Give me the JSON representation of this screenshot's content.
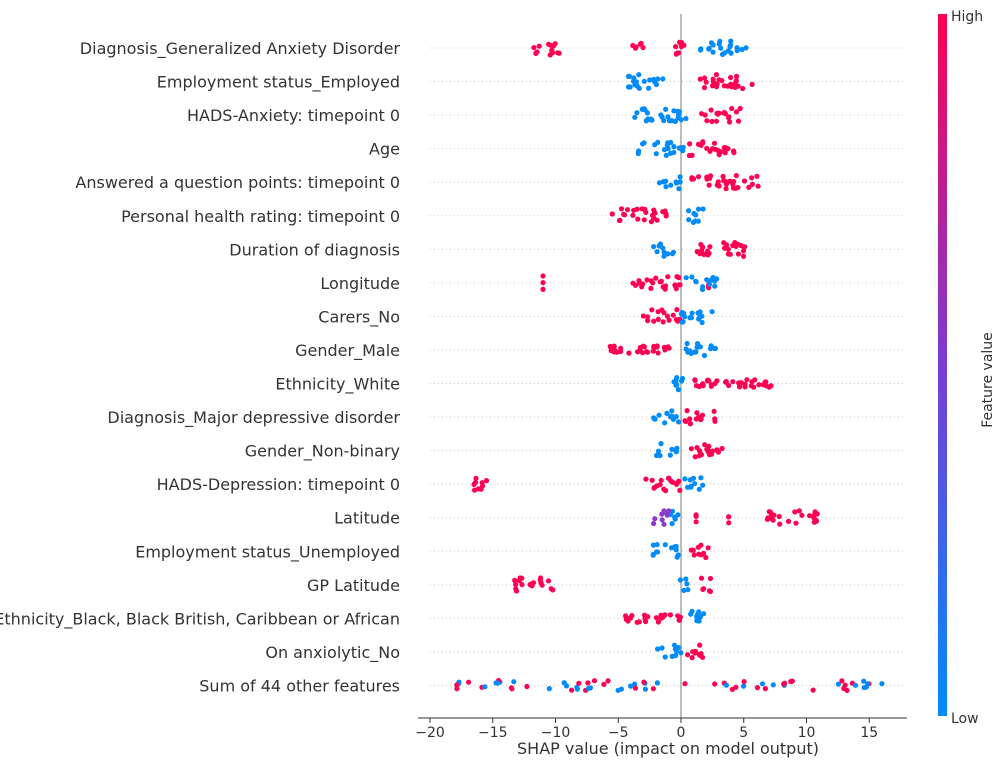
{
  "chart_data": {
    "type": "scatter",
    "subtype": "shap-beeswarm",
    "xlabel": "SHAP value (impact on model output)",
    "xlim": [
      -20,
      18
    ],
    "xticks": [
      -20,
      -15,
      -10,
      -5,
      0,
      5,
      10,
      15
    ],
    "colorbar": {
      "label": "Feature value",
      "high_label": "High",
      "low_label": "Low",
      "high_color": "#ff0052",
      "low_color": "#008bfb"
    },
    "features": [
      {
        "name": "Diagnosis_Generalized Anxiety Disorder",
        "high": [
          [
            -12,
            -9.5,
            -7,
            -5
          ],
          [
            -4,
            -3,
            -2,
            -1.5
          ],
          [
            -1,
            0.5
          ]
        ],
        "low": [
          [
            1.5,
            5.2
          ]
        ]
      },
      {
        "name": "Employment status_Employed",
        "high": [
          [
            1.5,
            5.8
          ]
        ],
        "low": [
          [
            -4.5,
            -1.2
          ]
        ]
      },
      {
        "name": "HADS-Anxiety: timepoint 0",
        "high": [
          [
            1.5,
            4.8
          ]
        ],
        "low": [
          [
            -3.8,
            0.8
          ]
        ]
      },
      {
        "name": "Age",
        "high": [
          [
            0.5,
            4.3
          ]
        ],
        "low": [
          [
            -3.5,
            0.2
          ]
        ]
      },
      {
        "name": "Answered a question points: timepoint 0",
        "high": [
          [
            0.8,
            1.5
          ],
          [
            2,
            6.5
          ]
        ],
        "low": [
          [
            -2,
            0
          ]
        ]
      },
      {
        "name": "Personal health rating: timepoint 0",
        "high": [
          [
            -5.5,
            -1
          ]
        ],
        "low": [
          [
            0.5,
            2
          ]
        ]
      },
      {
        "name": "Duration of diagnosis",
        "high": [
          [
            0.8,
            5.5
          ]
        ],
        "low": [
          [
            -2.2,
            -0.5
          ]
        ]
      },
      {
        "name": "Longitude",
        "high": [
          [
            -11,
            -11
          ],
          [
            -4.2,
            0
          ],
          [
            2.2,
            2.2
          ]
        ],
        "low": [
          [
            0.2,
            3
          ]
        ]
      },
      {
        "name": "Carers_No",
        "high": [
          [
            -3,
            0
          ]
        ],
        "low": [
          [
            0,
            2.8
          ]
        ]
      },
      {
        "name": "Gender_Male",
        "high": [
          [
            -5.7,
            -0.5
          ]
        ],
        "low": [
          [
            0,
            2.8
          ]
        ]
      },
      {
        "name": "Ethnicity_White",
        "high": [
          [
            1,
            7.2
          ]
        ],
        "low": [
          [
            -1.2,
            0.2
          ]
        ]
      },
      {
        "name": "Diagnosis_Major depressive disorder",
        "high": [
          [
            0.2,
            2.8
          ]
        ],
        "low": [
          [
            -2.2,
            0
          ]
        ]
      },
      {
        "name": "Gender_Non-binary",
        "high": [
          [
            0.5,
            3.5
          ]
        ],
        "low": [
          [
            -2,
            -0.2
          ]
        ]
      },
      {
        "name": "HADS-Depression: timepoint 0",
        "high": [
          [
            -16.5,
            -15
          ],
          [
            -3,
            0
          ]
        ],
        "low": [
          [
            0,
            1.8
          ]
        ]
      },
      {
        "name": "Latitude",
        "high": [
          [
            1.2,
            1.2
          ],
          [
            3.8,
            3.8
          ],
          [
            6.8,
            11
          ]
        ],
        "low": [
          [
            -1,
            0
          ]
        ],
        "mid": [
          [
            -2.3,
            -0.8
          ]
        ]
      },
      {
        "name": "Employment status_Unemployed",
        "high": [
          [
            0.5,
            2.3
          ]
        ],
        "low": [
          [
            -2.3,
            0
          ]
        ]
      },
      {
        "name": "GP Latitude",
        "high": [
          [
            -13.3,
            -10
          ],
          [
            1.5,
            2.5
          ]
        ],
        "low": [
          [
            -0.2,
            0.6
          ]
        ]
      },
      {
        "name": "Ethnicity_Black, Black British, Caribbean or African",
        "high": [
          [
            -4.8,
            0
          ]
        ],
        "low": [
          [
            0,
            1.8
          ]
        ]
      },
      {
        "name": "On anxiolytic_No",
        "high": [
          [
            0.3,
            2
          ]
        ],
        "low": [
          [
            -2,
            0
          ]
        ]
      },
      {
        "name": "Sum of 44 other features",
        "mixed": [
          [
            -18.3,
            16.5
          ]
        ]
      }
    ]
  }
}
